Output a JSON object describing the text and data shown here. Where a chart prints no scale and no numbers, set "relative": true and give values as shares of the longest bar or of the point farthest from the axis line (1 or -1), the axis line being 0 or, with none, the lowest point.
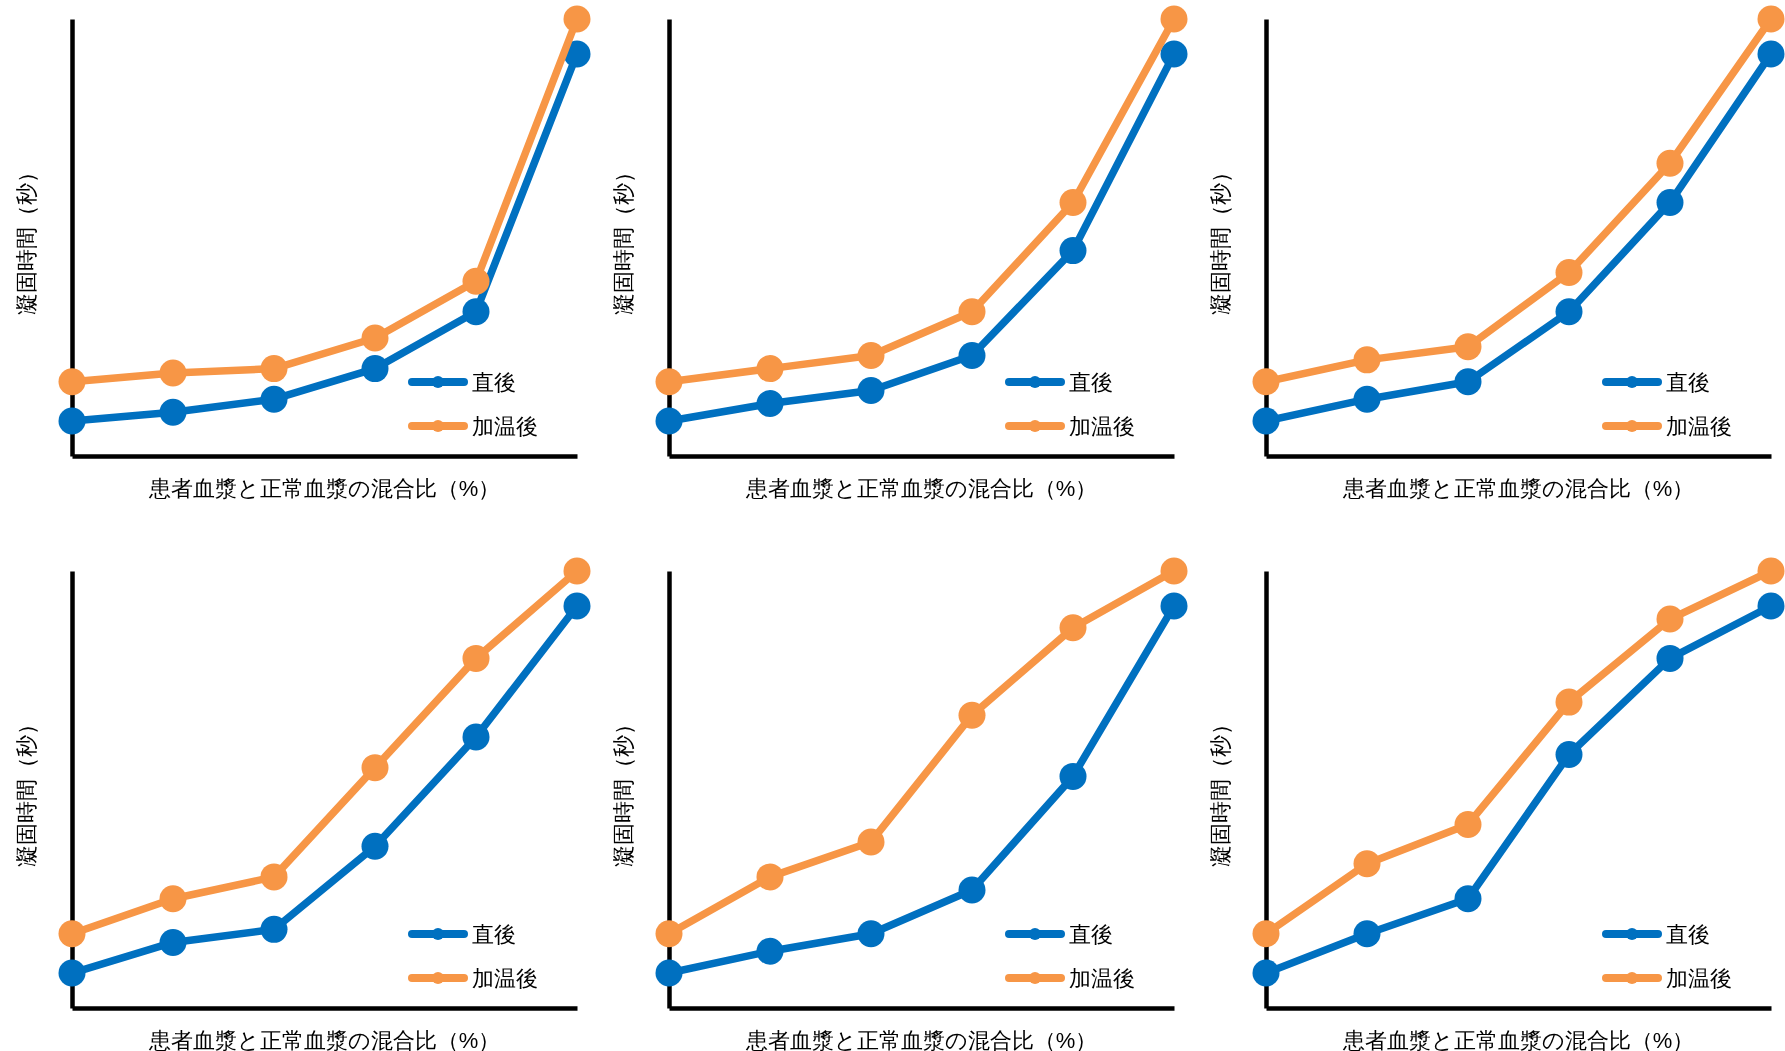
{
  "chart_data": [
    {
      "type": "line",
      "xlabel": "患者血漿と正常血漿の混合比（%）",
      "ylabel": "凝固時間（秒）",
      "relative": true,
      "legend": "bottom right",
      "marker": "circle",
      "categories": [
        null,
        null,
        null,
        null,
        null,
        null
      ],
      "series": [
        {
          "name": "直後",
          "color": "#0070c0",
          "values": [
            0.08,
            0.1,
            0.13,
            0.2,
            0.33,
            0.92
          ]
        },
        {
          "name": "加温後",
          "color": "#f79646",
          "values": [
            0.17,
            0.19,
            0.2,
            0.27,
            0.4,
            1
          ]
        }
      ]
    },
    {
      "type": "line",
      "xlabel": "患者血漿と正常血漿の混合比（%）",
      "ylabel": "凝固時間（秒）",
      "relative": true,
      "legend": "bottom right",
      "marker": "circle",
      "categories": [
        null,
        null,
        null,
        null,
        null,
        null
      ],
      "series": [
        {
          "name": "直後",
          "color": "#0070c0",
          "values": [
            0.08,
            0.12,
            0.15,
            0.23,
            0.47,
            0.92
          ]
        },
        {
          "name": "加温後",
          "color": "#f79646",
          "values": [
            0.17,
            0.2,
            0.23,
            0.33,
            0.58,
            1
          ]
        }
      ]
    },
    {
      "type": "line",
      "xlabel": "患者血漿と正常血漿の混合比（%）",
      "ylabel": "凝固時間（秒）",
      "relative": true,
      "legend": "bottom right",
      "marker": "circle",
      "categories": [
        null,
        null,
        null,
        null,
        null,
        null
      ],
      "series": [
        {
          "name": "直後",
          "color": "#0070c0",
          "values": [
            0.08,
            0.13,
            0.17,
            0.33,
            0.58,
            0.92
          ]
        },
        {
          "name": "加温後",
          "color": "#f79646",
          "values": [
            0.17,
            0.22,
            0.25,
            0.42,
            0.67,
            1
          ]
        }
      ]
    },
    {
      "type": "line",
      "xlabel": "患者血漿と正常血漿の混合比（%）",
      "ylabel": "凝固時間（秒）",
      "relative": true,
      "legend": "bottom right",
      "marker": "circle",
      "categories": [
        null,
        null,
        null,
        null,
        null,
        null
      ],
      "series": [
        {
          "name": "直後",
          "color": "#0070c0",
          "values": [
            0.08,
            0.15,
            0.18,
            0.37,
            0.62,
            0.92
          ]
        },
        {
          "name": "加温後",
          "color": "#f79646",
          "values": [
            0.17,
            0.25,
            0.3,
            0.55,
            0.8,
            1
          ]
        }
      ]
    },
    {
      "type": "line",
      "xlabel": "患者血漿と正常血漿の混合比（%）",
      "ylabel": "凝固時間（秒）",
      "relative": true,
      "legend": "bottom right",
      "marker": "circle",
      "categories": [
        null,
        null,
        null,
        null,
        null,
        null
      ],
      "series": [
        {
          "name": "直後",
          "color": "#0070c0",
          "values": [
            0.08,
            0.13,
            0.17,
            0.27,
            0.53,
            0.92
          ]
        },
        {
          "name": "加温後",
          "color": "#f79646",
          "values": [
            0.17,
            0.3,
            0.38,
            0.67,
            0.87,
            1
          ]
        }
      ]
    },
    {
      "type": "line",
      "xlabel": "患者血漿と正常血漿の混合比（%）",
      "ylabel": "凝固時間（秒）",
      "relative": true,
      "legend": "bottom right",
      "marker": "circle",
      "categories": [
        null,
        null,
        null,
        null,
        null,
        null
      ],
      "series": [
        {
          "name": "直後",
          "color": "#0070c0",
          "values": [
            0.08,
            0.17,
            0.25,
            0.58,
            0.8,
            0.92
          ]
        },
        {
          "name": "加温後",
          "color": "#f79646",
          "values": [
            0.17,
            0.33,
            0.42,
            0.7,
            0.89,
            1
          ]
        }
      ]
    }
  ]
}
